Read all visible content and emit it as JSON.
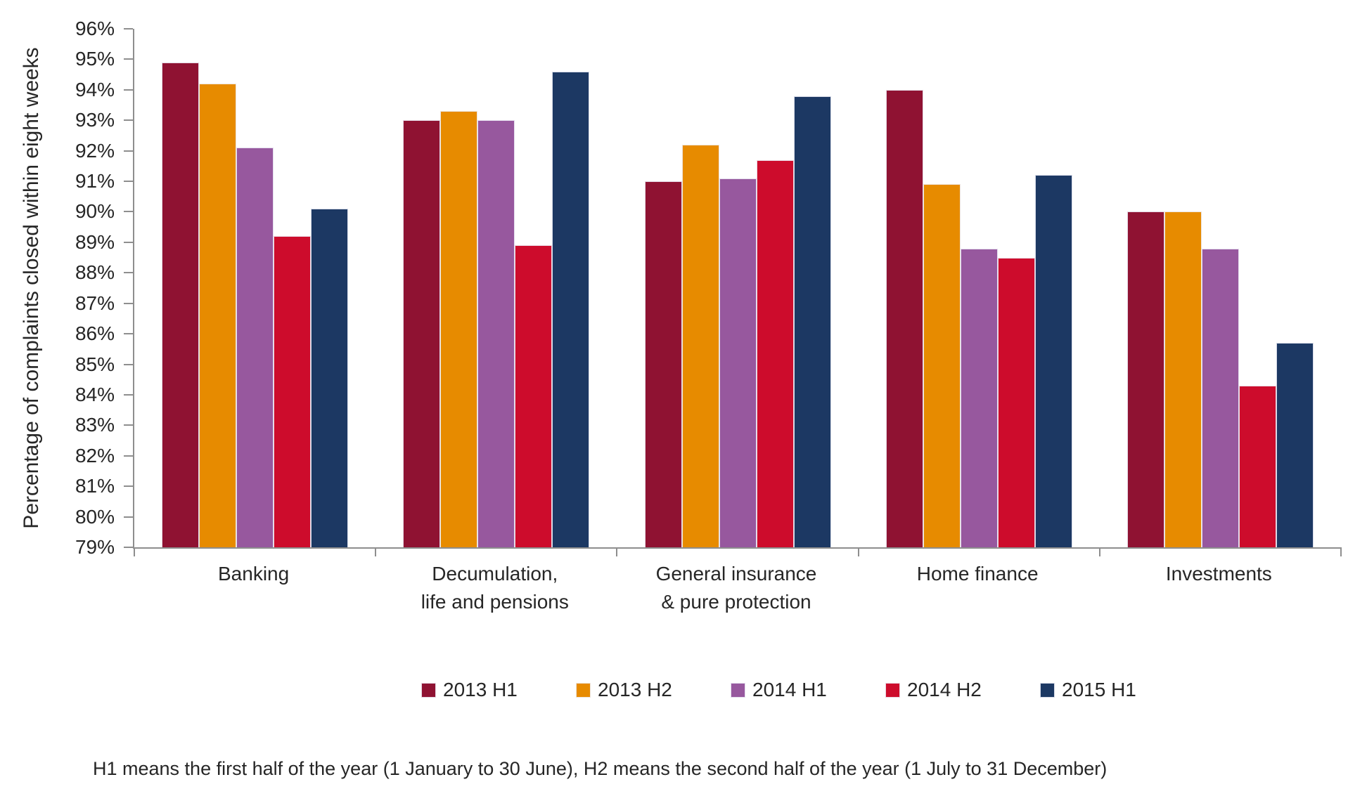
{
  "chart_data": {
    "type": "bar",
    "title": "",
    "xlabel": "",
    "ylabel": "Percentage of complaints closed within eight weeks",
    "ylim": [
      79,
      96
    ],
    "ytick_step": 1,
    "ytick_format": "percent",
    "grid": false,
    "legend_position": "bottom",
    "categories": [
      "Banking",
      "Decumulation,\nlife and pensions",
      "General insurance\n& pure protection",
      "Home finance",
      "Investments"
    ],
    "series": [
      {
        "name": "2013 H1",
        "color": "#8f1232",
        "values": [
          94.9,
          93.0,
          91.0,
          94.0,
          90.0
        ]
      },
      {
        "name": "2013 H2",
        "color": "#e78b00",
        "values": [
          94.2,
          93.3,
          92.2,
          90.9,
          90.0
        ]
      },
      {
        "name": "2014 H1",
        "color": "#97589e",
        "values": [
          92.1,
          93.0,
          91.1,
          88.8,
          88.8
        ]
      },
      {
        "name": "2014 H2",
        "color": "#cd0c2c",
        "values": [
          89.2,
          88.9,
          91.7,
          88.5,
          84.3
        ]
      },
      {
        "name": "2015 H1",
        "color": "#1c3863",
        "values": [
          90.1,
          94.6,
          93.8,
          91.2,
          85.7
        ]
      }
    ],
    "footnote": "H1 means the first half of the year (1 January to 30 June), H2 means the second half of the year (1 July to 31 December)"
  }
}
